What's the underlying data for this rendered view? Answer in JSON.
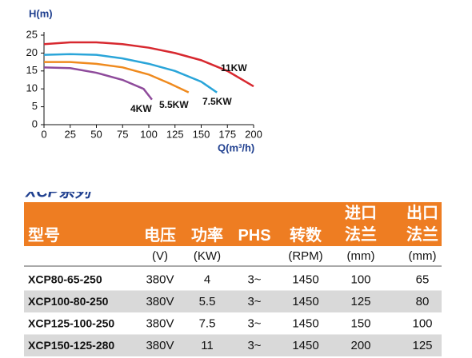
{
  "chart_data": {
    "type": "line",
    "y_label": "H(m)",
    "x_label": "Q(m³/h)",
    "xlim": [
      0,
      200
    ],
    "xticks": [
      0,
      25,
      50,
      75,
      100,
      125,
      150,
      175,
      200
    ],
    "ylim": [
      0,
      25
    ],
    "yticks": [
      0,
      5,
      10,
      15,
      20,
      25
    ],
    "grid": false,
    "series": [
      {
        "name": "11KW",
        "color": "#d7282f",
        "x": [
          0,
          25,
          50,
          75,
          100,
          125,
          150,
          175,
          200
        ],
        "values": [
          22.5,
          23,
          23,
          22.5,
          21.5,
          20,
          18,
          15,
          10.7
        ]
      },
      {
        "name": "7.5KW",
        "color": "#2aa5d9",
        "x": [
          0,
          25,
          50,
          75,
          100,
          125,
          150,
          165
        ],
        "values": [
          19.5,
          19.7,
          19.5,
          18.5,
          17,
          15,
          12,
          9
        ]
      },
      {
        "name": "5.5KW",
        "color": "#ef8a1e",
        "x": [
          0,
          25,
          50,
          75,
          100,
          120,
          138
        ],
        "values": [
          17.5,
          17.5,
          17,
          16,
          14,
          11.5,
          9
        ]
      },
      {
        "name": "4KW",
        "color": "#8e4b9b",
        "x": [
          0,
          25,
          50,
          75,
          95,
          103
        ],
        "values": [
          16,
          15.8,
          14.5,
          12.5,
          10,
          7
        ]
      }
    ]
  },
  "table": {
    "title": "XCP系列",
    "header": [
      "型号",
      "电压",
      "功率",
      "PHS",
      "转数",
      "进口\n法兰",
      "出口\n法兰"
    ],
    "units": [
      null,
      "(V)",
      "(KW)",
      null,
      "(RPM)",
      "(mm)",
      "(mm)"
    ],
    "rows": [
      [
        "XCP80-65-250",
        "380V",
        "4",
        "3~",
        "1450",
        "100",
        "65"
      ],
      [
        "XCP100-80-250",
        "380V",
        "5.5",
        "3~",
        "1450",
        "125",
        "80"
      ],
      [
        "XCP125-100-250",
        "380V",
        "7.5",
        "3~",
        "1450",
        "150",
        "100"
      ],
      [
        "XCP150-125-280",
        "380V",
        "11",
        "3~",
        "1450",
        "200",
        "125"
      ]
    ]
  }
}
